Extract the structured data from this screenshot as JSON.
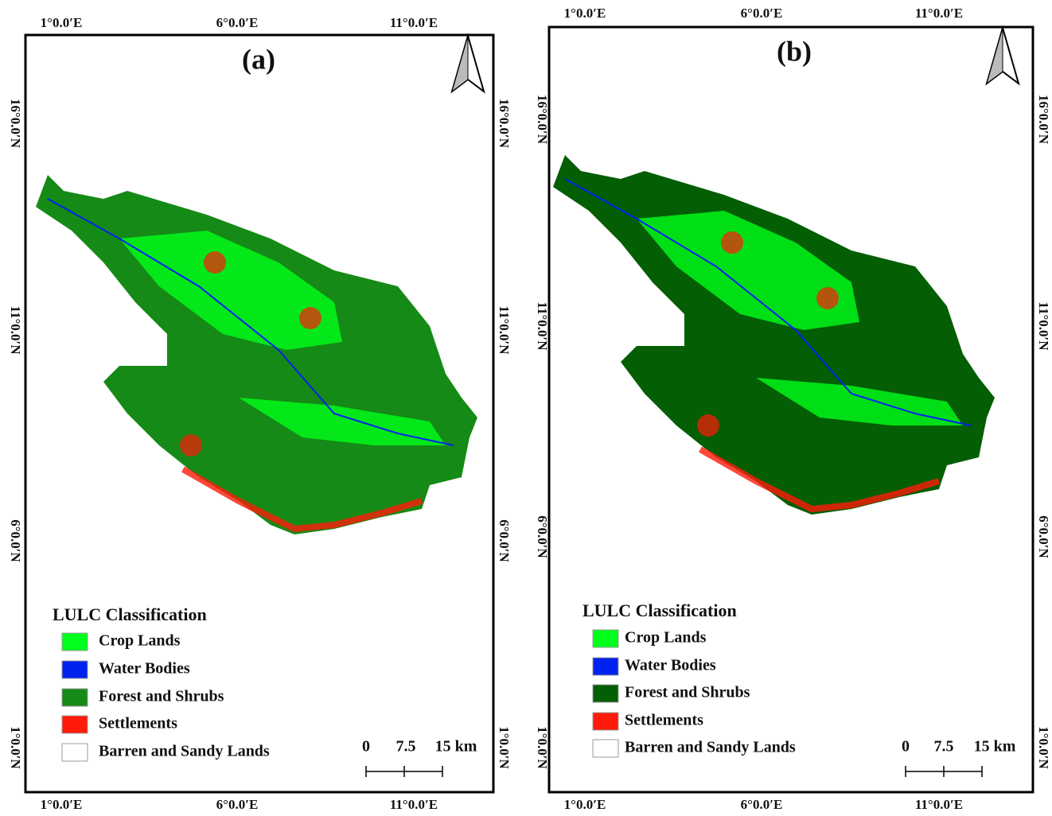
{
  "panels": [
    {
      "label": "(a)",
      "x_ticks": [
        "1°0.0′E",
        "6°0.0′E",
        "11°0.0′E"
      ],
      "y_ticks": [
        "16°0.0′N",
        "11°0.0′N",
        "6°0.0′N",
        "1°0.0′N"
      ],
      "legend": {
        "title": "LULC Classification",
        "items": [
          {
            "label": "Crop Lands",
            "color": "#00ff1a"
          },
          {
            "label": "Water Bodies",
            "color": "#0022ee"
          },
          {
            "label": "Forest and Shrubs",
            "color": "#168a16"
          },
          {
            "label": "Settlements",
            "color": "#ff1a0a"
          },
          {
            "label": "Barren and Sandy Lands",
            "color": "#ffffff"
          }
        ]
      },
      "scale_bar": [
        "0",
        "7.5",
        "15 km"
      ]
    },
    {
      "label": "(b)",
      "x_ticks": [
        "1°0.0′E",
        "6°0.0′E",
        "11°0.0′E"
      ],
      "y_ticks": [
        "16°0.0′N",
        "11°0.0′N",
        "6°0.0′N",
        "1°0.0′N"
      ],
      "legend": {
        "title": "LULC Classification",
        "items": [
          {
            "label": "Crop Lands",
            "color": "#00ff1a"
          },
          {
            "label": "Water Bodies",
            "color": "#0022ee"
          },
          {
            "label": "Forest and Shrubs",
            "color": "#045e04"
          },
          {
            "label": "Settlements",
            "color": "#ff1a0a"
          },
          {
            "label": "Barren and Sandy Lands",
            "color": "#ffffff"
          }
        ]
      },
      "scale_bar": [
        "0",
        "7.5",
        "15 km"
      ]
    }
  ]
}
